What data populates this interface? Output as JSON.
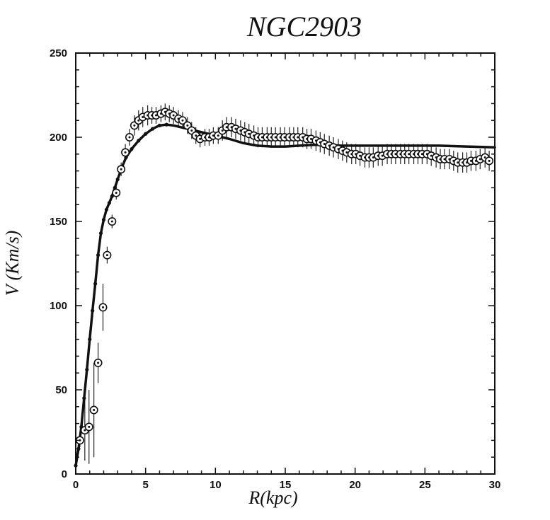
{
  "chart_data": {
    "type": "scatter",
    "title": "NGC2903",
    "xlabel": "R(kpc)",
    "ylabel": "V (Km/s)",
    "xlim": [
      0,
      30
    ],
    "ylim": [
      0,
      250
    ],
    "xticks": [
      "0",
      "5",
      "10",
      "15",
      "20",
      "25",
      "30"
    ],
    "yticks": [
      "0",
      "50",
      "100",
      "150",
      "200",
      "250"
    ],
    "grid": false,
    "legend": "none",
    "series": [
      {
        "marker": "circle-dot",
        "points": [
          {
            "x": 0.3,
            "y": 20,
            "err": 4
          },
          {
            "x": 0.65,
            "y": 26,
            "err": 18
          },
          {
            "x": 0.95,
            "y": 28,
            "err": 22
          },
          {
            "x": 1.3,
            "y": 38,
            "err": 28
          },
          {
            "x": 1.6,
            "y": 66,
            "err": 12
          },
          {
            "x": 1.95,
            "y": 99,
            "err": 14
          },
          {
            "x": 2.25,
            "y": 130,
            "err": 5
          },
          {
            "x": 2.6,
            "y": 150,
            "err": 4
          },
          {
            "x": 2.9,
            "y": 167,
            "err": 4
          },
          {
            "x": 3.25,
            "y": 181,
            "err": 4
          },
          {
            "x": 3.55,
            "y": 191,
            "err": 5
          },
          {
            "x": 3.85,
            "y": 200,
            "err": 5
          },
          {
            "x": 4.2,
            "y": 207,
            "err": 6
          },
          {
            "x": 4.5,
            "y": 210,
            "err": 6
          },
          {
            "x": 4.8,
            "y": 212,
            "err": 6
          },
          {
            "x": 5.15,
            "y": 213,
            "err": 6
          },
          {
            "x": 5.45,
            "y": 213,
            "err": 5
          },
          {
            "x": 5.75,
            "y": 213,
            "err": 5
          },
          {
            "x": 6.1,
            "y": 214,
            "err": 5
          },
          {
            "x": 6.4,
            "y": 215,
            "err": 5
          },
          {
            "x": 6.7,
            "y": 214,
            "err": 5
          },
          {
            "x": 7.0,
            "y": 213,
            "err": 5
          },
          {
            "x": 7.35,
            "y": 211,
            "err": 5
          },
          {
            "x": 7.65,
            "y": 210,
            "err": 5
          },
          {
            "x": 8.0,
            "y": 207,
            "err": 5
          },
          {
            "x": 8.3,
            "y": 204,
            "err": 5
          },
          {
            "x": 8.6,
            "y": 201,
            "err": 5
          },
          {
            "x": 8.9,
            "y": 199,
            "err": 5
          },
          {
            "x": 9.25,
            "y": 200,
            "err": 5
          },
          {
            "x": 9.55,
            "y": 200,
            "err": 5
          },
          {
            "x": 9.85,
            "y": 201,
            "err": 5
          },
          {
            "x": 10.2,
            "y": 201,
            "err": 5
          },
          {
            "x": 10.5,
            "y": 204,
            "err": 6
          },
          {
            "x": 10.8,
            "y": 206,
            "err": 6
          },
          {
            "x": 11.15,
            "y": 206,
            "err": 6
          },
          {
            "x": 11.45,
            "y": 205,
            "err": 6
          },
          {
            "x": 11.8,
            "y": 204,
            "err": 6
          },
          {
            "x": 12.1,
            "y": 203,
            "err": 6
          },
          {
            "x": 12.4,
            "y": 202,
            "err": 6
          },
          {
            "x": 12.75,
            "y": 201,
            "err": 6
          },
          {
            "x": 13.05,
            "y": 200,
            "err": 6
          },
          {
            "x": 13.35,
            "y": 200,
            "err": 6
          },
          {
            "x": 13.7,
            "y": 200,
            "err": 6
          },
          {
            "x": 14.0,
            "y": 200,
            "err": 6
          },
          {
            "x": 14.3,
            "y": 200,
            "err": 6
          },
          {
            "x": 14.65,
            "y": 200,
            "err": 6
          },
          {
            "x": 14.95,
            "y": 200,
            "err": 6
          },
          {
            "x": 15.3,
            "y": 200,
            "err": 6
          },
          {
            "x": 15.6,
            "y": 200,
            "err": 6
          },
          {
            "x": 15.9,
            "y": 200,
            "err": 6
          },
          {
            "x": 16.25,
            "y": 200,
            "err": 6
          },
          {
            "x": 16.55,
            "y": 199,
            "err": 6
          },
          {
            "x": 16.85,
            "y": 199,
            "err": 6
          },
          {
            "x": 17.2,
            "y": 198,
            "err": 6
          },
          {
            "x": 17.5,
            "y": 197,
            "err": 6
          },
          {
            "x": 17.8,
            "y": 196,
            "err": 6
          },
          {
            "x": 18.15,
            "y": 195,
            "err": 6
          },
          {
            "x": 18.45,
            "y": 194,
            "err": 6
          },
          {
            "x": 18.8,
            "y": 193,
            "err": 6
          },
          {
            "x": 19.1,
            "y": 192,
            "err": 6
          },
          {
            "x": 19.4,
            "y": 191,
            "err": 6
          },
          {
            "x": 19.75,
            "y": 190,
            "err": 6
          },
          {
            "x": 20.05,
            "y": 190,
            "err": 6
          },
          {
            "x": 20.35,
            "y": 189,
            "err": 6
          },
          {
            "x": 20.7,
            "y": 188,
            "err": 6
          },
          {
            "x": 21.0,
            "y": 188,
            "err": 6
          },
          {
            "x": 21.3,
            "y": 188,
            "err": 6
          },
          {
            "x": 21.65,
            "y": 189,
            "err": 6
          },
          {
            "x": 21.95,
            "y": 189,
            "err": 6
          },
          {
            "x": 22.3,
            "y": 190,
            "err": 6
          },
          {
            "x": 22.6,
            "y": 190,
            "err": 6
          },
          {
            "x": 22.9,
            "y": 190,
            "err": 6
          },
          {
            "x": 23.25,
            "y": 190,
            "err": 6
          },
          {
            "x": 23.55,
            "y": 190,
            "err": 6
          },
          {
            "x": 23.85,
            "y": 190,
            "err": 6
          },
          {
            "x": 24.2,
            "y": 190,
            "err": 6
          },
          {
            "x": 24.5,
            "y": 190,
            "err": 6
          },
          {
            "x": 24.8,
            "y": 190,
            "err": 6
          },
          {
            "x": 25.15,
            "y": 190,
            "err": 6
          },
          {
            "x": 25.45,
            "y": 189,
            "err": 6
          },
          {
            "x": 25.8,
            "y": 188,
            "err": 6
          },
          {
            "x": 26.1,
            "y": 187,
            "err": 6
          },
          {
            "x": 26.4,
            "y": 187,
            "err": 6
          },
          {
            "x": 26.75,
            "y": 187,
            "err": 6
          },
          {
            "x": 27.05,
            "y": 186,
            "err": 6
          },
          {
            "x": 27.35,
            "y": 185,
            "err": 6
          },
          {
            "x": 27.7,
            "y": 185,
            "err": 6
          },
          {
            "x": 28.0,
            "y": 185,
            "err": 6
          },
          {
            "x": 28.3,
            "y": 186,
            "err": 6
          },
          {
            "x": 28.65,
            "y": 186,
            "err": 6
          },
          {
            "x": 28.95,
            "y": 187,
            "err": 6
          },
          {
            "x": 29.3,
            "y": 188,
            "err": 6
          },
          {
            "x": 29.6,
            "y": 186,
            "err": 6
          }
        ]
      },
      {
        "marker": "line",
        "points": [
          {
            "x": 0.0,
            "y": 5
          },
          {
            "x": 0.2,
            "y": 15
          },
          {
            "x": 0.4,
            "y": 28
          },
          {
            "x": 0.6,
            "y": 45
          },
          {
            "x": 0.8,
            "y": 62
          },
          {
            "x": 1.0,
            "y": 80
          },
          {
            "x": 1.2,
            "y": 97
          },
          {
            "x": 1.4,
            "y": 113
          },
          {
            "x": 1.6,
            "y": 130
          },
          {
            "x": 1.8,
            "y": 143
          },
          {
            "x": 2.0,
            "y": 151
          },
          {
            "x": 2.2,
            "y": 157
          },
          {
            "x": 2.4,
            "y": 161
          },
          {
            "x": 2.6,
            "y": 165
          },
          {
            "x": 2.8,
            "y": 170
          },
          {
            "x": 3.0,
            "y": 175
          },
          {
            "x": 3.3,
            "y": 182
          },
          {
            "x": 3.6,
            "y": 188
          },
          {
            "x": 4.0,
            "y": 193
          },
          {
            "x": 4.5,
            "y": 198
          },
          {
            "x": 5.0,
            "y": 202
          },
          {
            "x": 5.5,
            "y": 205
          },
          {
            "x": 6.0,
            "y": 207
          },
          {
            "x": 6.5,
            "y": 207.5
          },
          {
            "x": 7.0,
            "y": 207
          },
          {
            "x": 7.5,
            "y": 206
          },
          {
            "x": 8.0,
            "y": 205
          },
          {
            "x": 9.0,
            "y": 203
          },
          {
            "x": 10.0,
            "y": 201
          },
          {
            "x": 11.0,
            "y": 199
          },
          {
            "x": 12.0,
            "y": 196.5
          },
          {
            "x": 13.0,
            "y": 195
          },
          {
            "x": 14.0,
            "y": 194.5
          },
          {
            "x": 15.0,
            "y": 194.5
          },
          {
            "x": 16.0,
            "y": 195
          },
          {
            "x": 17.0,
            "y": 195.5
          },
          {
            "x": 18.0,
            "y": 195.5
          },
          {
            "x": 19.0,
            "y": 195
          },
          {
            "x": 20.0,
            "y": 195
          },
          {
            "x": 22.0,
            "y": 195
          },
          {
            "x": 24.0,
            "y": 195
          },
          {
            "x": 26.0,
            "y": 195
          },
          {
            "x": 28.0,
            "y": 194.5
          },
          {
            "x": 30.0,
            "y": 194
          }
        ]
      }
    ]
  }
}
